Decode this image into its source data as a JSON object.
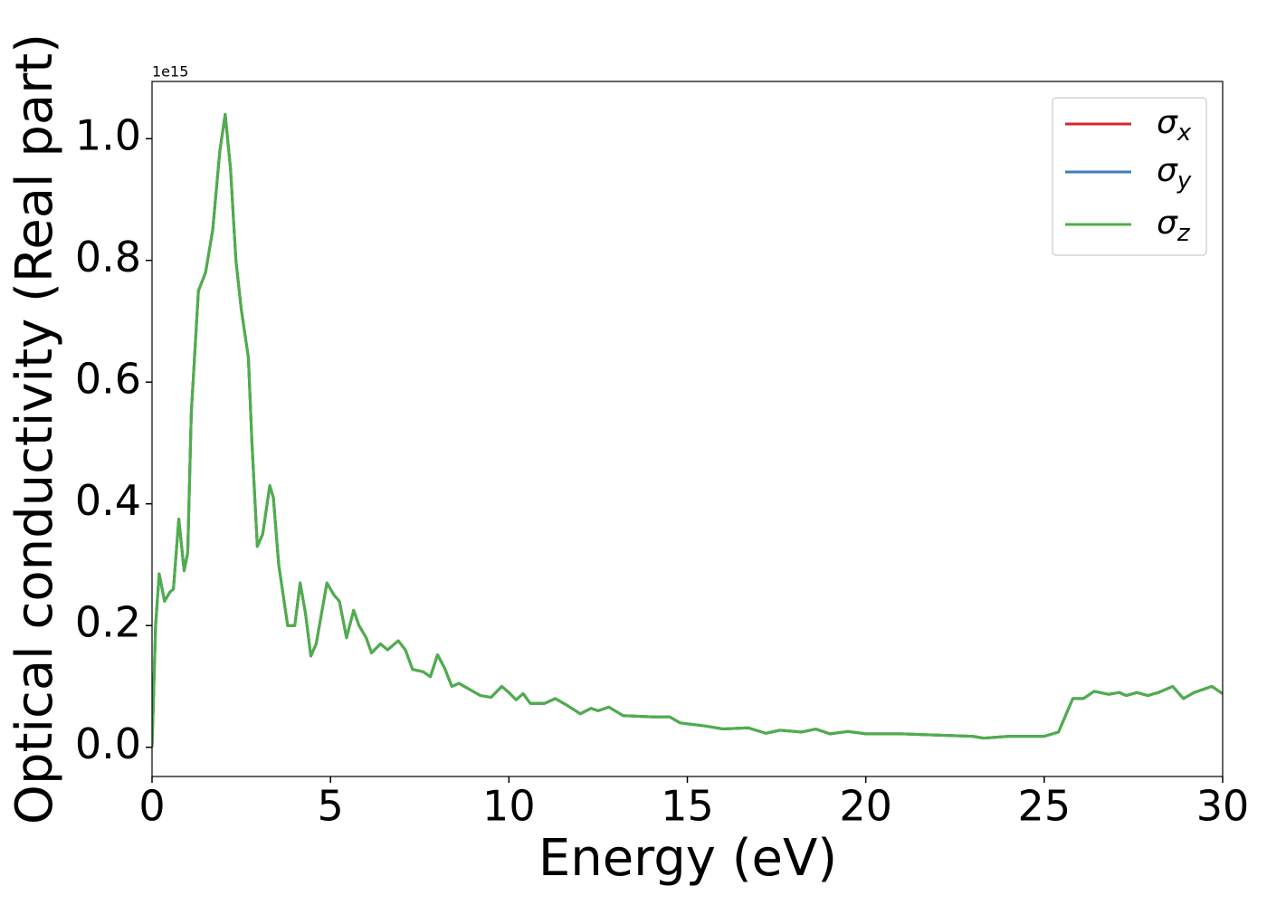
{
  "chart_data": {
    "type": "line",
    "xlabel": "Energy (eV)",
    "ylabel": "Optical conductivity (Real part)",
    "y_offset_label": "1e15",
    "x": [
      0,
      0.1,
      0.2,
      0.35,
      0.5,
      0.6,
      0.75,
      0.9,
      1.0,
      1.1,
      1.3,
      1.5,
      1.7,
      1.9,
      2.05,
      2.2,
      2.35,
      2.5,
      2.6,
      2.7,
      2.8,
      2.95,
      3.1,
      3.3,
      3.4,
      3.55,
      3.8,
      4.0,
      4.15,
      4.3,
      4.45,
      4.6,
      4.9,
      5.1,
      5.25,
      5.45,
      5.65,
      5.8,
      6.0,
      6.15,
      6.4,
      6.6,
      6.9,
      7.1,
      7.3,
      7.6,
      7.8,
      8.0,
      8.2,
      8.4,
      8.6,
      8.9,
      9.2,
      9.5,
      9.8,
      10.0,
      10.2,
      10.4,
      10.6,
      11.0,
      11.3,
      11.6,
      12.0,
      12.3,
      12.5,
      12.8,
      13.2,
      14.0,
      14.5,
      14.8,
      15.5,
      16.0,
      16.7,
      17.2,
      17.6,
      18.2,
      18.6,
      19.0,
      19.5,
      20,
      21,
      22,
      23,
      23.3,
      24,
      25,
      25.4,
      25.8,
      26.1,
      26.4,
      26.8,
      27.1,
      27.3,
      27.6,
      27.9,
      28.2,
      28.6,
      28.9,
      29.2,
      29.7,
      30
    ],
    "series": [
      {
        "name": "σx",
        "color": "#d62728",
        "values": [
          0.0,
          0.2,
          0.285,
          0.24,
          0.255,
          0.26,
          0.375,
          0.29,
          0.32,
          0.55,
          0.75,
          0.78,
          0.85,
          0.98,
          1.04,
          0.95,
          0.8,
          0.72,
          0.68,
          0.64,
          0.5,
          0.33,
          0.35,
          0.43,
          0.41,
          0.3,
          0.2,
          0.2,
          0.27,
          0.22,
          0.15,
          0.17,
          0.27,
          0.25,
          0.24,
          0.18,
          0.225,
          0.2,
          0.18,
          0.155,
          0.17,
          0.16,
          0.175,
          0.16,
          0.128,
          0.124,
          0.116,
          0.152,
          0.13,
          0.1,
          0.105,
          0.095,
          0.085,
          0.082,
          0.1,
          0.09,
          0.078,
          0.088,
          0.072,
          0.072,
          0.08,
          0.07,
          0.055,
          0.064,
          0.06,
          0.066,
          0.052,
          0.05,
          0.05,
          0.04,
          0.035,
          0.03,
          0.032,
          0.023,
          0.028,
          0.025,
          0.03,
          0.022,
          0.026,
          0.022,
          0.022,
          0.02,
          0.018,
          0.015,
          0.018,
          0.018,
          0.025,
          0.08,
          0.08,
          0.092,
          0.087,
          0.09,
          0.085,
          0.09,
          0.085,
          0.09,
          0.1,
          0.08,
          0.09,
          0.1,
          0.088
        ]
      },
      {
        "name": "σy",
        "color": "#3b7eb8",
        "values": [
          0.0,
          0.2,
          0.285,
          0.24,
          0.255,
          0.26,
          0.375,
          0.29,
          0.32,
          0.55,
          0.75,
          0.78,
          0.85,
          0.98,
          1.04,
          0.95,
          0.8,
          0.72,
          0.68,
          0.64,
          0.5,
          0.33,
          0.35,
          0.43,
          0.41,
          0.3,
          0.2,
          0.2,
          0.27,
          0.22,
          0.15,
          0.17,
          0.27,
          0.25,
          0.24,
          0.18,
          0.225,
          0.2,
          0.18,
          0.155,
          0.17,
          0.16,
          0.175,
          0.16,
          0.128,
          0.124,
          0.116,
          0.152,
          0.13,
          0.1,
          0.105,
          0.095,
          0.085,
          0.082,
          0.1,
          0.09,
          0.078,
          0.088,
          0.072,
          0.072,
          0.08,
          0.07,
          0.055,
          0.064,
          0.06,
          0.066,
          0.052,
          0.05,
          0.05,
          0.04,
          0.035,
          0.03,
          0.032,
          0.023,
          0.028,
          0.025,
          0.03,
          0.022,
          0.026,
          0.022,
          0.022,
          0.02,
          0.018,
          0.015,
          0.018,
          0.018,
          0.025,
          0.08,
          0.08,
          0.092,
          0.087,
          0.09,
          0.085,
          0.09,
          0.085,
          0.09,
          0.1,
          0.08,
          0.09,
          0.1,
          0.088
        ]
      },
      {
        "name": "σz",
        "color": "#4daf4a",
        "values": [
          0.0,
          0.2,
          0.285,
          0.24,
          0.255,
          0.26,
          0.375,
          0.29,
          0.32,
          0.55,
          0.75,
          0.78,
          0.85,
          0.98,
          1.04,
          0.95,
          0.8,
          0.72,
          0.68,
          0.64,
          0.5,
          0.33,
          0.35,
          0.43,
          0.41,
          0.3,
          0.2,
          0.2,
          0.27,
          0.22,
          0.15,
          0.17,
          0.27,
          0.25,
          0.24,
          0.18,
          0.225,
          0.2,
          0.18,
          0.155,
          0.17,
          0.16,
          0.175,
          0.16,
          0.128,
          0.124,
          0.116,
          0.152,
          0.13,
          0.1,
          0.105,
          0.095,
          0.085,
          0.082,
          0.1,
          0.09,
          0.078,
          0.088,
          0.072,
          0.072,
          0.08,
          0.07,
          0.055,
          0.064,
          0.06,
          0.066,
          0.052,
          0.05,
          0.05,
          0.04,
          0.035,
          0.03,
          0.032,
          0.023,
          0.028,
          0.025,
          0.03,
          0.022,
          0.026,
          0.022,
          0.022,
          0.02,
          0.018,
          0.015,
          0.018,
          0.018,
          0.025,
          0.08,
          0.08,
          0.092,
          0.087,
          0.09,
          0.085,
          0.09,
          0.085,
          0.09,
          0.1,
          0.08,
          0.09,
          0.1,
          0.088
        ]
      }
    ],
    "xlim": [
      0,
      30
    ],
    "xticks": [
      0,
      5,
      10,
      15,
      20,
      25,
      30
    ],
    "ylim": [
      -0.048,
      1.094
    ],
    "yticks": [
      {
        "value": 0,
        "label": "0.0"
      },
      0.2,
      0.4,
      0.6,
      0.8,
      {
        "value": 1,
        "label": "1.0"
      }
    ],
    "grid": false,
    "legend": "upper right"
  }
}
